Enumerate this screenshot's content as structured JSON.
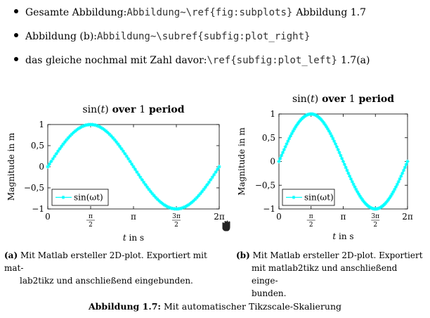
{
  "bullets": [
    {
      "text": "Gesamte Abbildung: ",
      "code": "Abbildung~\\ref{fig:subplots}",
      "after": "Abbildung 1.7"
    },
    {
      "text": "Abbildung (b): ",
      "code": "Abbildung~\\subref{subfig:plot_right}",
      "after": ""
    },
    {
      "text": "das gleiche nochmal mit Zahl davor: ",
      "code": "\\ref{subfig:plot_left}",
      "after": "1.7(a)"
    }
  ],
  "chart_data": [
    {
      "type": "line",
      "title": "sin(t) over 1 period",
      "title_parts": {
        "func": "sin(",
        "var": "t",
        "close": ")",
        "bold": " over ",
        "num": "1",
        "bold2": " period"
      },
      "xlabel": "t in s",
      "xlabel_parts": {
        "var": "t",
        "rest": " in s"
      },
      "ylabel": "Magnitude in m",
      "xlim": [
        0,
        6.283185
      ],
      "ylim": [
        -1,
        1
      ],
      "x_ticks": [
        {
          "value": 0,
          "label": "0"
        },
        {
          "value": 1.570796,
          "label": "π/2"
        },
        {
          "value": 3.141593,
          "label": "π"
        },
        {
          "value": 4.712389,
          "label": "3π/2"
        },
        {
          "value": 6.283185,
          "label": "2π"
        }
      ],
      "y_ticks": [
        {
          "value": 1,
          "label": "1"
        },
        {
          "value": 0.5,
          "label": "0,5"
        },
        {
          "value": 0,
          "label": "0"
        },
        {
          "value": -0.5,
          "label": "−0,5"
        },
        {
          "value": -1,
          "label": "−1"
        }
      ],
      "series": [
        {
          "name": "sin(ωt)",
          "function": "sin",
          "color": "#00FFFF",
          "marker": "asterisk",
          "points": 101
        }
      ],
      "legend": "bottom-left",
      "grid": false
    },
    {
      "type": "line",
      "title": "sin(t) over 1 period",
      "title_parts": {
        "func": "sin(",
        "var": "t",
        "close": ")",
        "bold": " over ",
        "num": "1",
        "bold2": " period"
      },
      "xlabel": "t in s",
      "xlabel_parts": {
        "var": "t",
        "rest": " in s"
      },
      "ylabel": "Magnitude in m",
      "xlim": [
        0,
        6.283185
      ],
      "ylim": [
        -1,
        1
      ],
      "x_ticks": [
        {
          "value": 0,
          "label": "0"
        },
        {
          "value": 1.570796,
          "label": "π/2"
        },
        {
          "value": 3.141593,
          "label": "π"
        },
        {
          "value": 4.712389,
          "label": "3π/2"
        },
        {
          "value": 6.283185,
          "label": "2π"
        }
      ],
      "y_ticks": [
        {
          "value": 1,
          "label": "1"
        },
        {
          "value": 0.5,
          "label": "0,5"
        },
        {
          "value": 0,
          "label": "0"
        },
        {
          "value": -0.5,
          "label": "−0,5"
        },
        {
          "value": -1,
          "label": "−1"
        }
      ],
      "series": [
        {
          "name": "sin(ωt)",
          "function": "sin",
          "color": "#00FFFF",
          "marker": "asterisk",
          "points": 101
        }
      ],
      "legend": "bottom-left",
      "grid": false
    }
  ],
  "subcaptions": [
    {
      "tag": "(a)",
      "text": "Mit Matlab ersteller 2D-plot. Exportiert mit mat-lab2tikz und anschließend eingebunden.",
      "line1": "Mit Matlab ersteller 2D-plot. Exportiert mit mat-",
      "line2": "lab2tikz und anschließend eingebunden."
    },
    {
      "tag": "(b)",
      "text": "Mit Matlab ersteller 2D-plot. Exportiert mit matlab2tikz und anschließend eingebunden.",
      "line1": "Mit Matlab ersteller 2D-plot. Exportiert",
      "line2": "mit matlab2tikz und anschließend einge-",
      "line3": "bunden."
    }
  ],
  "figure_caption": {
    "label": "Abbildung 1.7:",
    "text": "Mit automatischer Tikzscale-Skalierung"
  },
  "cursor_icon": "hand-grab-icon"
}
